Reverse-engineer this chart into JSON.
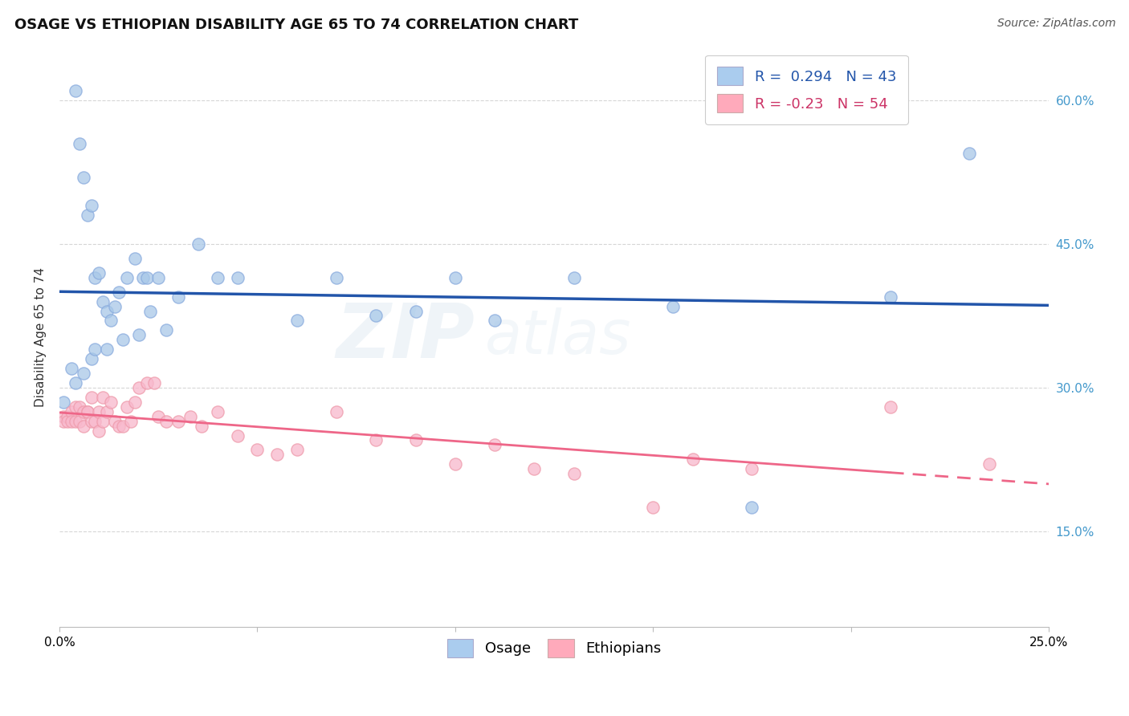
{
  "title": "OSAGE VS ETHIOPIAN DISABILITY AGE 65 TO 74 CORRELATION CHART",
  "source": "Source: ZipAtlas.com",
  "ylabel": "Disability Age 65 to 74",
  "watermark": "ZIPatlas",
  "xlim": [
    0.0,
    0.25
  ],
  "ylim": [
    0.05,
    0.655
  ],
  "yticks": [
    0.15,
    0.3,
    0.45,
    0.6
  ],
  "ytick_labels": [
    "15.0%",
    "30.0%",
    "45.0%",
    "60.0%"
  ],
  "xticks": [
    0.0,
    0.05,
    0.1,
    0.15,
    0.2,
    0.25
  ],
  "xtick_labels": [
    "0.0%",
    "",
    "",
    "",
    "",
    "25.0%"
  ],
  "osage_R": 0.294,
  "osage_N": 43,
  "ethiopian_R": -0.23,
  "ethiopian_N": 54,
  "osage_color": "#a8c8e8",
  "ethiopian_color": "#f8b8cc",
  "osage_line_color": "#2255aa",
  "ethiopian_line_color": "#ee6688",
  "legend_color_blue": "#aaccee",
  "legend_color_pink": "#ffaabb",
  "osage_x": [
    0.001,
    0.004,
    0.005,
    0.006,
    0.007,
    0.008,
    0.009,
    0.01,
    0.011,
    0.012,
    0.013,
    0.014,
    0.015,
    0.016,
    0.017,
    0.019,
    0.02,
    0.021,
    0.022,
    0.023,
    0.025,
    0.027,
    0.03,
    0.035,
    0.04,
    0.045,
    0.06,
    0.07,
    0.08,
    0.09,
    0.1,
    0.11,
    0.13,
    0.155,
    0.175,
    0.21,
    0.23,
    0.003,
    0.004,
    0.006,
    0.008,
    0.009,
    0.012
  ],
  "osage_y": [
    0.285,
    0.61,
    0.555,
    0.52,
    0.48,
    0.49,
    0.415,
    0.42,
    0.39,
    0.38,
    0.37,
    0.385,
    0.4,
    0.35,
    0.415,
    0.435,
    0.355,
    0.415,
    0.415,
    0.38,
    0.415,
    0.36,
    0.395,
    0.45,
    0.415,
    0.415,
    0.37,
    0.415,
    0.375,
    0.38,
    0.415,
    0.37,
    0.415,
    0.385,
    0.175,
    0.395,
    0.545,
    0.32,
    0.305,
    0.315,
    0.33,
    0.34,
    0.34
  ],
  "ethiopian_x": [
    0.001,
    0.001,
    0.002,
    0.002,
    0.003,
    0.003,
    0.004,
    0.004,
    0.005,
    0.005,
    0.006,
    0.006,
    0.007,
    0.007,
    0.008,
    0.008,
    0.009,
    0.01,
    0.01,
    0.011,
    0.011,
    0.012,
    0.013,
    0.014,
    0.015,
    0.016,
    0.017,
    0.018,
    0.019,
    0.02,
    0.022,
    0.024,
    0.025,
    0.027,
    0.03,
    0.033,
    0.036,
    0.04,
    0.045,
    0.05,
    0.055,
    0.06,
    0.07,
    0.08,
    0.09,
    0.1,
    0.11,
    0.12,
    0.13,
    0.15,
    0.16,
    0.175,
    0.21,
    0.235
  ],
  "ethiopian_y": [
    0.27,
    0.265,
    0.27,
    0.265,
    0.275,
    0.265,
    0.28,
    0.265,
    0.265,
    0.28,
    0.275,
    0.26,
    0.275,
    0.275,
    0.265,
    0.29,
    0.265,
    0.275,
    0.255,
    0.29,
    0.265,
    0.275,
    0.285,
    0.265,
    0.26,
    0.26,
    0.28,
    0.265,
    0.285,
    0.3,
    0.305,
    0.305,
    0.27,
    0.265,
    0.265,
    0.27,
    0.26,
    0.275,
    0.25,
    0.235,
    0.23,
    0.235,
    0.275,
    0.245,
    0.245,
    0.22,
    0.24,
    0.215,
    0.21,
    0.175,
    0.225,
    0.215,
    0.28,
    0.22
  ],
  "title_fontsize": 13,
  "source_fontsize": 10,
  "axis_label_fontsize": 11,
  "tick_fontsize": 11,
  "legend_fontsize": 13,
  "watermark_fontsize": 68,
  "watermark_alpha": 0.12,
  "background_color": "#ffffff",
  "grid_color": "#cccccc",
  "grid_style": "--",
  "grid_alpha": 0.8
}
